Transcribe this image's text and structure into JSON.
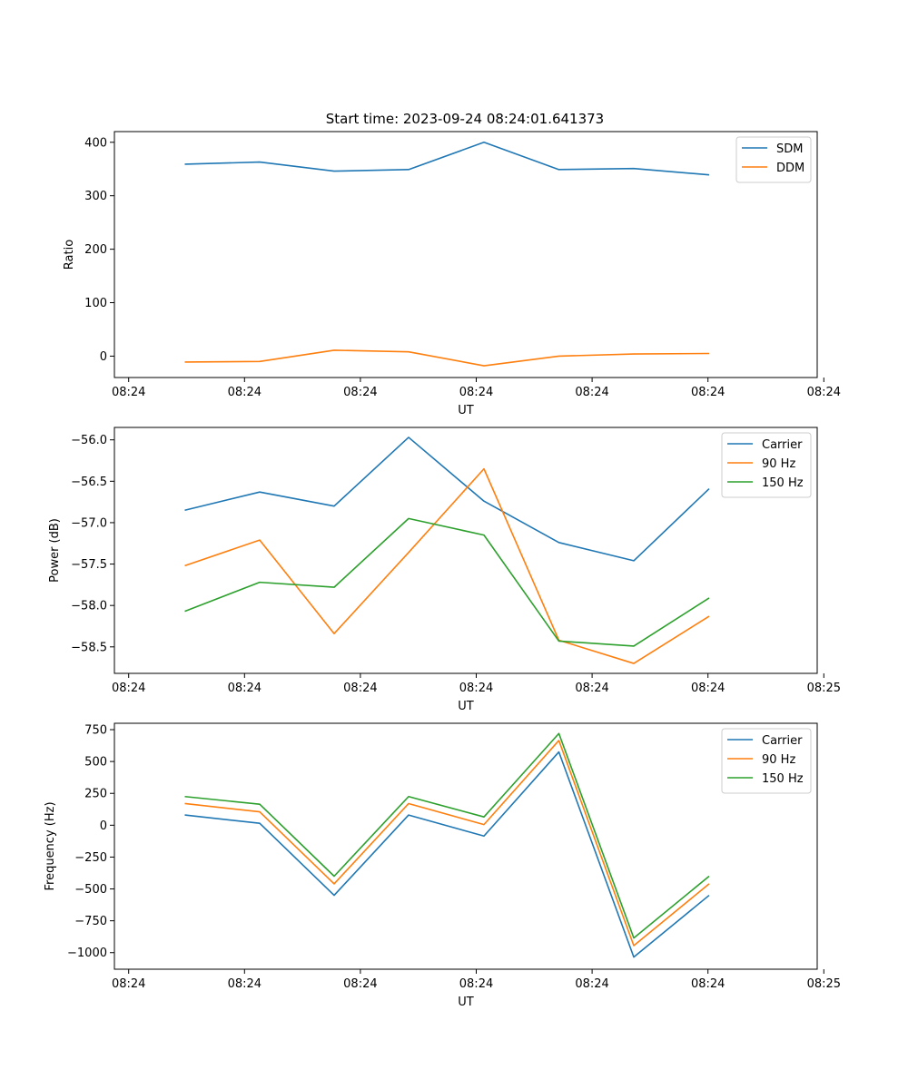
{
  "figure": {
    "title": "Start time: 2023-09-24 08:24:01.641373"
  },
  "colors": {
    "blue": "#1f77b4",
    "orange": "#ff7f0e",
    "green": "#2ca02c"
  },
  "chart_data": [
    {
      "type": "line",
      "title": "Start time: 2023-09-24 08:24:01.641373",
      "xlabel": "UT",
      "ylabel": "Ratio",
      "x": [
        1,
        2,
        3,
        4,
        5,
        6,
        7,
        8
      ],
      "xlim": [
        0,
        9.25
      ],
      "xticks": [
        0.2,
        1.75,
        3.3,
        4.85,
        6.4,
        7.95,
        9.45
      ],
      "xtick_labels": [
        "08:24",
        "08:24",
        "08:24",
        "08:24",
        "08:24",
        "08:24",
        "08:24"
      ],
      "ylim": [
        -40,
        420
      ],
      "yticks": [
        0,
        100,
        200,
        300,
        400
      ],
      "ytick_labels": [
        "0",
        "100",
        "200",
        "300",
        "400"
      ],
      "legend_position": "top-right",
      "series": [
        {
          "name": "SDM",
          "color": "#1f77b4",
          "values": [
            359,
            363,
            346,
            349,
            400,
            349,
            351,
            339
          ]
        },
        {
          "name": "DDM",
          "color": "#ff7f0e",
          "values": [
            -11,
            -10,
            11,
            8,
            -18,
            0,
            4,
            5
          ]
        }
      ]
    },
    {
      "type": "line",
      "title": "",
      "xlabel": "UT",
      "ylabel": "Power (dB)",
      "x": [
        1,
        2,
        3,
        4,
        5,
        6,
        7,
        8
      ],
      "xlim": [
        0,
        9.25
      ],
      "xticks": [
        0.2,
        1.75,
        3.3,
        4.85,
        6.4,
        7.95,
        9.45
      ],
      "xtick_labels": [
        "08:24",
        "08:24",
        "08:24",
        "08:24",
        "08:24",
        "08:24",
        "08:25"
      ],
      "ylim": [
        -58.82,
        -55.85
      ],
      "yticks": [
        -56.0,
        -56.5,
        -57.0,
        -57.5,
        -58.0,
        -58.5
      ],
      "ytick_labels": [
        "−56.0",
        "−56.5",
        "−57.0",
        "−57.5",
        "−58.0",
        "−58.5"
      ],
      "legend_position": "top-right",
      "series": [
        {
          "name": "Carrier",
          "color": "#1f77b4",
          "values": [
            -56.85,
            -56.63,
            -56.8,
            -55.97,
            -56.74,
            -57.24,
            -57.46,
            -56.59
          ]
        },
        {
          "name": "90 Hz",
          "color": "#ff7f0e",
          "values": [
            -57.52,
            -57.21,
            -58.34,
            -57.36,
            -56.35,
            -58.42,
            -58.7,
            -58.13
          ]
        },
        {
          "name": "150 Hz",
          "color": "#2ca02c",
          "values": [
            -58.07,
            -57.72,
            -57.78,
            -56.95,
            -57.15,
            -58.43,
            -58.49,
            -57.91
          ]
        }
      ]
    },
    {
      "type": "line",
      "title": "",
      "xlabel": "UT",
      "ylabel": "Frequency (Hz)",
      "x": [
        1,
        2,
        3,
        4,
        5,
        6,
        7,
        8
      ],
      "xlim": [
        0,
        9.25
      ],
      "xticks": [
        0.2,
        1.75,
        3.3,
        4.85,
        6.4,
        7.95,
        9.45
      ],
      "xtick_labels": [
        "08:24",
        "08:24",
        "08:24",
        "08:24",
        "08:24",
        "08:24",
        "08:25"
      ],
      "ylim": [
        -1130,
        800
      ],
      "yticks": [
        750,
        500,
        250,
        0,
        -250,
        -500,
        -750,
        -1000
      ],
      "ytick_labels": [
        "750",
        "500",
        "250",
        "0",
        "−250",
        "−500",
        "−750",
        "−1000"
      ],
      "legend_position": "top-right",
      "series": [
        {
          "name": "Carrier",
          "color": "#1f77b4",
          "values": [
            80,
            15,
            -550,
            80,
            -85,
            575,
            -1035,
            -550
          ]
        },
        {
          "name": "90 Hz",
          "color": "#ff7f0e",
          "values": [
            170,
            105,
            -460,
            170,
            5,
            665,
            -945,
            -460
          ]
        },
        {
          "name": "150 Hz",
          "color": "#2ca02c",
          "values": [
            225,
            165,
            -400,
            225,
            65,
            720,
            -885,
            -400
          ]
        }
      ]
    }
  ]
}
